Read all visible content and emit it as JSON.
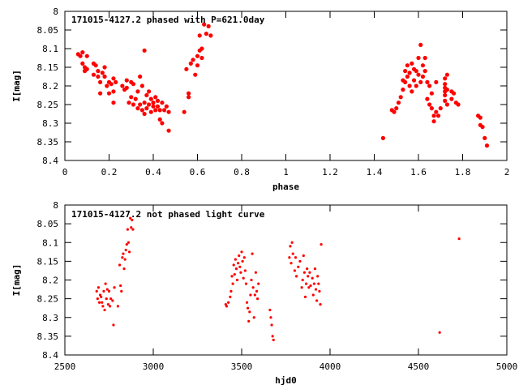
{
  "chart_data": [
    {
      "type": "scatter",
      "title": "171015-4127.2 phased with P=621.0day",
      "xlabel": "phase",
      "ylabel": "I[mag]",
      "xlim": [
        0,
        2
      ],
      "ylim": [
        8.4,
        8.0
      ],
      "y_inverted": true,
      "xticks": [
        "0",
        "0.2",
        "0.4",
        "0.6",
        "0.8",
        "1",
        "1.2",
        "1.4",
        "1.6",
        "1.8",
        "2"
      ],
      "xtick_values": [
        0,
        0.2,
        0.4,
        0.6,
        0.8,
        1,
        1.2,
        1.4,
        1.6,
        1.8,
        2
      ],
      "yticks": [
        "8",
        "8.05",
        "8.1",
        "8.15",
        "8.2",
        "8.25",
        "8.3",
        "8.35",
        "8.4"
      ],
      "ytick_values": [
        8.0,
        8.05,
        8.1,
        8.15,
        8.2,
        8.25,
        8.3,
        8.35,
        8.4
      ],
      "grid": false,
      "marker_color": "#ff0000",
      "points": [
        [
          0.06,
          8.115
        ],
        [
          0.07,
          8.12
        ],
        [
          0.08,
          8.11
        ],
        [
          0.08,
          8.14
        ],
        [
          0.09,
          8.15
        ],
        [
          0.09,
          8.16
        ],
        [
          0.1,
          8.12
        ],
        [
          0.1,
          8.155
        ],
        [
          0.13,
          8.14
        ],
        [
          0.13,
          8.17
        ],
        [
          0.14,
          8.145
        ],
        [
          0.15,
          8.175
        ],
        [
          0.15,
          8.16
        ],
        [
          0.16,
          8.19
        ],
        [
          0.16,
          8.22
        ],
        [
          0.17,
          8.165
        ],
        [
          0.18,
          8.175
        ],
        [
          0.18,
          8.15
        ],
        [
          0.19,
          8.2
        ],
        [
          0.2,
          8.19
        ],
        [
          0.2,
          8.22
        ],
        [
          0.21,
          8.195
        ],
        [
          0.22,
          8.215
        ],
        [
          0.22,
          8.18
        ],
        [
          0.22,
          8.245
        ],
        [
          0.23,
          8.19
        ],
        [
          0.26,
          8.2
        ],
        [
          0.27,
          8.21
        ],
        [
          0.28,
          8.185
        ],
        [
          0.28,
          8.205
        ],
        [
          0.29,
          8.245
        ],
        [
          0.3,
          8.19
        ],
        [
          0.3,
          8.23
        ],
        [
          0.31,
          8.195
        ],
        [
          0.31,
          8.25
        ],
        [
          0.32,
          8.235
        ],
        [
          0.33,
          8.215
        ],
        [
          0.33,
          8.26
        ],
        [
          0.34,
          8.175
        ],
        [
          0.34,
          8.25
        ],
        [
          0.35,
          8.2
        ],
        [
          0.35,
          8.265
        ],
        [
          0.36,
          8.245
        ],
        [
          0.36,
          8.275
        ],
        [
          0.36,
          8.105
        ],
        [
          0.37,
          8.225
        ],
        [
          0.37,
          8.26
        ],
        [
          0.38,
          8.215
        ],
        [
          0.38,
          8.25
        ],
        [
          0.39,
          8.235
        ],
        [
          0.39,
          8.27
        ],
        [
          0.4,
          8.245
        ],
        [
          0.4,
          8.255
        ],
        [
          0.41,
          8.23
        ],
        [
          0.41,
          8.265
        ],
        [
          0.42,
          8.24
        ],
        [
          0.42,
          8.255
        ],
        [
          0.43,
          8.265
        ],
        [
          0.43,
          8.29
        ],
        [
          0.44,
          8.245
        ],
        [
          0.44,
          8.3
        ],
        [
          0.45,
          8.265
        ],
        [
          0.46,
          8.255
        ],
        [
          0.47,
          8.27
        ],
        [
          0.47,
          8.32
        ],
        [
          0.54,
          8.27
        ],
        [
          0.55,
          8.155
        ],
        [
          0.56,
          8.22
        ],
        [
          0.56,
          8.23
        ],
        [
          0.57,
          8.14
        ],
        [
          0.58,
          8.13
        ],
        [
          0.59,
          8.17
        ],
        [
          0.6,
          8.145
        ],
        [
          0.6,
          8.12
        ],
        [
          0.61,
          8.105
        ],
        [
          0.61,
          8.065
        ],
        [
          0.62,
          8.1
        ],
        [
          0.62,
          8.125
        ],
        [
          0.63,
          8.035
        ],
        [
          0.64,
          8.06
        ],
        [
          0.65,
          8.04
        ],
        [
          0.66,
          8.065
        ],
        [
          1.44,
          8.34
        ],
        [
          1.48,
          8.265
        ],
        [
          1.49,
          8.27
        ],
        [
          1.5,
          8.26
        ],
        [
          1.51,
          8.245
        ],
        [
          1.52,
          8.23
        ],
        [
          1.53,
          8.185
        ],
        [
          1.53,
          8.21
        ],
        [
          1.54,
          8.16
        ],
        [
          1.54,
          8.19
        ],
        [
          1.55,
          8.145
        ],
        [
          1.55,
          8.175
        ],
        [
          1.56,
          8.2
        ],
        [
          1.56,
          8.165
        ],
        [
          1.57,
          8.14
        ],
        [
          1.57,
          8.215
        ],
        [
          1.58,
          8.155
        ],
        [
          1.58,
          8.185
        ],
        [
          1.59,
          8.2
        ],
        [
          1.59,
          8.16
        ],
        [
          1.6,
          8.125
        ],
        [
          1.6,
          8.17
        ],
        [
          1.61,
          8.09
        ],
        [
          1.61,
          8.19
        ],
        [
          1.62,
          8.145
        ],
        [
          1.62,
          8.175
        ],
        [
          1.63,
          8.16
        ],
        [
          1.63,
          8.125
        ],
        [
          1.64,
          8.19
        ],
        [
          1.64,
          8.235
        ],
        [
          1.65,
          8.2
        ],
        [
          1.65,
          8.25
        ],
        [
          1.66,
          8.22
        ],
        [
          1.66,
          8.26
        ],
        [
          1.67,
          8.28
        ],
        [
          1.67,
          8.295
        ],
        [
          1.68,
          8.19
        ],
        [
          1.68,
          8.27
        ],
        [
          1.69,
          8.28
        ],
        [
          1.7,
          8.26
        ],
        [
          1.72,
          8.18
        ],
        [
          1.72,
          8.195
        ],
        [
          1.72,
          8.205
        ],
        [
          1.72,
          8.215
        ],
        [
          1.72,
          8.225
        ],
        [
          1.72,
          8.24
        ],
        [
          1.73,
          8.21
        ],
        [
          1.73,
          8.25
        ],
        [
          1.73,
          8.17
        ],
        [
          1.75,
          8.215
        ],
        [
          1.75,
          8.235
        ],
        [
          1.76,
          8.22
        ],
        [
          1.77,
          8.245
        ],
        [
          1.78,
          8.25
        ],
        [
          1.87,
          8.28
        ],
        [
          1.88,
          8.285
        ],
        [
          1.88,
          8.305
        ],
        [
          1.89,
          8.31
        ],
        [
          1.9,
          8.34
        ],
        [
          1.91,
          8.36
        ]
      ]
    },
    {
      "type": "scatter",
      "title": "171015-4127.2 not phased light curve",
      "xlabel": "hjd0",
      "ylabel": "I[mag]",
      "xlim": [
        2500,
        5000
      ],
      "ylim": [
        8.4,
        8.0
      ],
      "y_inverted": true,
      "xticks": [
        "2500",
        "3000",
        "3500",
        "4000",
        "4500",
        "5000"
      ],
      "xtick_values": [
        2500,
        3000,
        3500,
        4000,
        4500,
        5000
      ],
      "yticks": [
        "8",
        "8.05",
        "8.1",
        "8.15",
        "8.2",
        "8.25",
        "8.3",
        "8.35",
        "8.4"
      ],
      "ytick_values": [
        8.0,
        8.05,
        8.1,
        8.15,
        8.2,
        8.25,
        8.3,
        8.35,
        8.4
      ],
      "grid": false,
      "marker_color": "#ff0000",
      "points": [
        [
          2680,
          8.23
        ],
        [
          2685,
          8.25
        ],
        [
          2690,
          8.22
        ],
        [
          2695,
          8.26
        ],
        [
          2700,
          8.24
        ],
        [
          2705,
          8.245
        ],
        [
          2710,
          8.26
        ],
        [
          2715,
          8.27
        ],
        [
          2720,
          8.23
        ],
        [
          2725,
          8.28
        ],
        [
          2730,
          8.21
        ],
        [
          2735,
          8.25
        ],
        [
          2740,
          8.225
        ],
        [
          2745,
          8.265
        ],
        [
          2750,
          8.23
        ],
        [
          2755,
          8.27
        ],
        [
          2760,
          8.25
        ],
        [
          2770,
          8.255
        ],
        [
          2775,
          8.32
        ],
        [
          2780,
          8.22
        ],
        [
          2800,
          8.27
        ],
        [
          2810,
          8.16
        ],
        [
          2815,
          8.215
        ],
        [
          2820,
          8.23
        ],
        [
          2825,
          8.14
        ],
        [
          2830,
          8.13
        ],
        [
          2835,
          8.17
        ],
        [
          2840,
          8.145
        ],
        [
          2845,
          8.12
        ],
        [
          2850,
          8.105
        ],
        [
          2855,
          8.065
        ],
        [
          2860,
          8.1
        ],
        [
          2865,
          8.125
        ],
        [
          2870,
          8.035
        ],
        [
          2875,
          8.06
        ],
        [
          2880,
          8.04
        ],
        [
          2885,
          8.065
        ],
        [
          3410,
          8.265
        ],
        [
          3415,
          8.27
        ],
        [
          3425,
          8.26
        ],
        [
          3435,
          8.245
        ],
        [
          3440,
          8.23
        ],
        [
          3445,
          8.19
        ],
        [
          3450,
          8.21
        ],
        [
          3455,
          8.16
        ],
        [
          3460,
          8.185
        ],
        [
          3465,
          8.145
        ],
        [
          3470,
          8.17
        ],
        [
          3475,
          8.2
        ],
        [
          3480,
          8.155
        ],
        [
          3485,
          8.135
        ],
        [
          3490,
          8.165
        ],
        [
          3495,
          8.18
        ],
        [
          3500,
          8.125
        ],
        [
          3505,
          8.15
        ],
        [
          3510,
          8.195
        ],
        [
          3515,
          8.14
        ],
        [
          3520,
          8.175
        ],
        [
          3525,
          8.21
        ],
        [
          3530,
          8.26
        ],
        [
          3535,
          8.275
        ],
        [
          3540,
          8.31
        ],
        [
          3545,
          8.285
        ],
        [
          3550,
          8.24
        ],
        [
          3555,
          8.2
        ],
        [
          3560,
          8.13
        ],
        [
          3565,
          8.22
        ],
        [
          3570,
          8.3
        ],
        [
          3575,
          8.24
        ],
        [
          3580,
          8.18
        ],
        [
          3585,
          8.23
        ],
        [
          3590,
          8.25
        ],
        [
          3595,
          8.21
        ],
        [
          3660,
          8.28
        ],
        [
          3665,
          8.3
        ],
        [
          3670,
          8.32
        ],
        [
          3675,
          8.35
        ],
        [
          3680,
          8.36
        ],
        [
          3770,
          8.14
        ],
        [
          3775,
          8.11
        ],
        [
          3780,
          8.155
        ],
        [
          3785,
          8.1
        ],
        [
          3790,
          8.13
        ],
        [
          3800,
          8.175
        ],
        [
          3805,
          8.14
        ],
        [
          3810,
          8.19
        ],
        [
          3820,
          8.165
        ],
        [
          3830,
          8.15
        ],
        [
          3840,
          8.22
        ],
        [
          3845,
          8.2
        ],
        [
          3850,
          8.135
        ],
        [
          3855,
          8.18
        ],
        [
          3860,
          8.245
        ],
        [
          3865,
          8.21
        ],
        [
          3870,
          8.17
        ],
        [
          3875,
          8.19
        ],
        [
          3880,
          8.22
        ],
        [
          3885,
          8.18
        ],
        [
          3890,
          8.215
        ],
        [
          3900,
          8.195
        ],
        [
          3905,
          8.24
        ],
        [
          3910,
          8.21
        ],
        [
          3915,
          8.17
        ],
        [
          3920,
          8.225
        ],
        [
          3925,
          8.255
        ],
        [
          3930,
          8.19
        ],
        [
          3935,
          8.21
        ],
        [
          3940,
          8.23
        ],
        [
          3945,
          8.265
        ],
        [
          3950,
          8.105
        ],
        [
          4620,
          8.34
        ],
        [
          4730,
          8.09
        ]
      ]
    }
  ]
}
